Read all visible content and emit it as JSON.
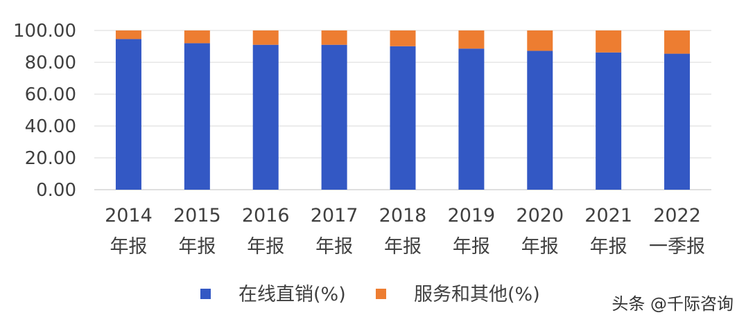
{
  "chart_data": {
    "type": "bar",
    "stacked": true,
    "categories": [
      [
        "2014",
        "年报"
      ],
      [
        "2015",
        "年报"
      ],
      [
        "2016",
        "年报"
      ],
      [
        "2017",
        "年报"
      ],
      [
        "2018",
        "年报"
      ],
      [
        "2019",
        "年报"
      ],
      [
        "2020",
        "年报"
      ],
      [
        "2021",
        "年报"
      ],
      [
        "2022",
        "一季报"
      ]
    ],
    "series": [
      {
        "name": "在线直销(%)",
        "color": "#3358c4",
        "values": [
          94.6,
          92.0,
          91.0,
          91.0,
          90.1,
          88.6,
          87.2,
          86.2,
          85.4
        ]
      },
      {
        "name": "服务和其他(%)",
        "color": "#ed7d31",
        "values": [
          5.4,
          8.0,
          9.0,
          9.0,
          9.9,
          11.4,
          12.8,
          13.8,
          14.6
        ]
      }
    ],
    "yticks": [
      "0.00",
      "20.00",
      "40.00",
      "60.00",
      "80.00",
      "100.00"
    ],
    "ylim": [
      0,
      100
    ],
    "grid": true,
    "legend": "bottom"
  },
  "credit": "头条 @千际咨询"
}
